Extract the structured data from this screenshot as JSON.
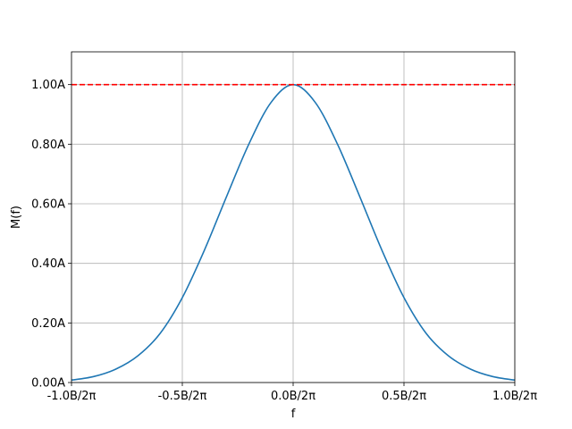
{
  "chart_data": {
    "type": "line",
    "xlabel": "f",
    "ylabel": "M(f)",
    "xlim": [
      -1.0,
      1.0
    ],
    "ylim": [
      0.0,
      1.11
    ],
    "grid": true,
    "x_ticks": [
      {
        "value": -1.0,
        "label": "-1.0B/2π"
      },
      {
        "value": -0.5,
        "label": "-0.5B/2π"
      },
      {
        "value": 0.0,
        "label": "0.0B/2π"
      },
      {
        "value": 0.5,
        "label": "0.5B/2π"
      },
      {
        "value": 1.0,
        "label": "1.0B/2π"
      }
    ],
    "y_ticks": [
      {
        "value": 0.0,
        "label": "0.00A"
      },
      {
        "value": 0.2,
        "label": "0.20A"
      },
      {
        "value": 0.4,
        "label": "0.40A"
      },
      {
        "value": 0.6,
        "label": "0.60A"
      },
      {
        "value": 0.8,
        "label": "0.80A"
      },
      {
        "value": 1.0,
        "label": "1.00A"
      }
    ],
    "series": [
      {
        "color": "#1f77b4",
        "style": "solid",
        "x": [
          -1.0,
          -0.9,
          -0.8,
          -0.7,
          -0.6,
          -0.5,
          -0.4,
          -0.3,
          -0.2,
          -0.1,
          0.0,
          0.1,
          0.2,
          0.3,
          0.4,
          0.5,
          0.6,
          0.7,
          0.8,
          0.9,
          1.0
        ],
        "y": [
          0.008,
          0.02,
          0.045,
          0.09,
          0.165,
          0.285,
          0.445,
          0.625,
          0.8,
          0.94,
          1.0,
          0.94,
          0.8,
          0.625,
          0.445,
          0.285,
          0.165,
          0.09,
          0.045,
          0.02,
          0.008
        ]
      },
      {
        "color": "#ff0000",
        "style": "dashed",
        "x": [
          -1.0,
          1.0
        ],
        "y": [
          1.0,
          1.0
        ]
      }
    ]
  }
}
